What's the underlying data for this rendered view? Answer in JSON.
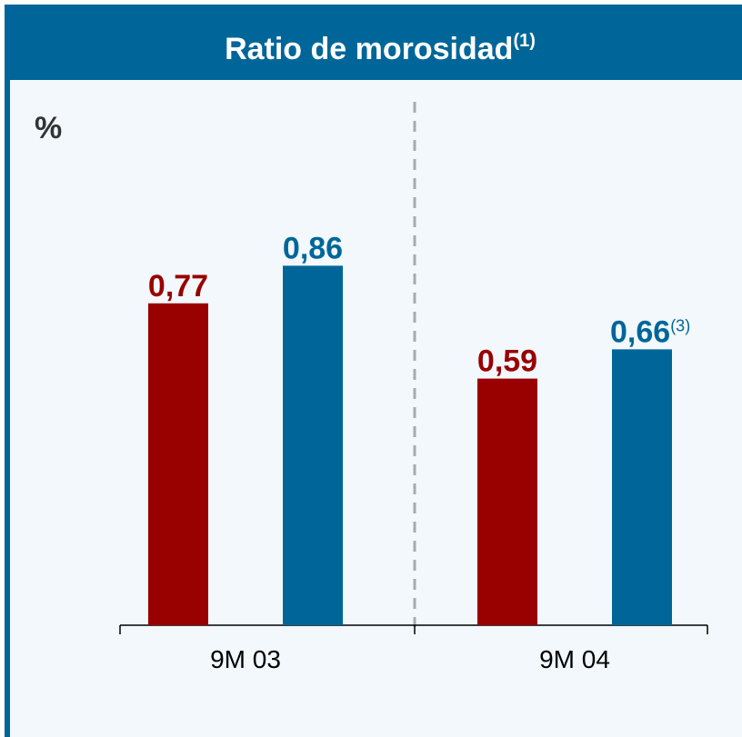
{
  "chart_data": {
    "type": "bar",
    "title": "Ratio de morosidad",
    "title_note": "(1)",
    "unit": "%",
    "categories": [
      "9M 03",
      "9M 04"
    ],
    "series": [
      {
        "color": "#990000",
        "values": [
          0.77,
          0.59
        ],
        "value_labels": [
          "0,77",
          "0,59"
        ]
      },
      {
        "color": "#006699",
        "values": [
          0.86,
          0.66
        ],
        "value_labels": [
          "0,86",
          "0,66"
        ],
        "value_notes": [
          null,
          "(3)"
        ]
      }
    ],
    "ylim": [
      0,
      1
    ]
  }
}
